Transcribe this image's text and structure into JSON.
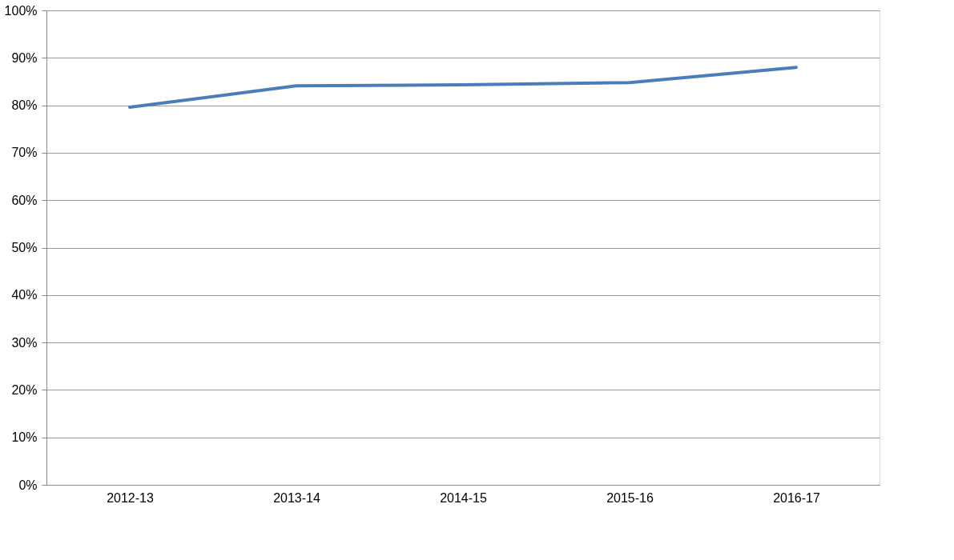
{
  "chart_data": {
    "type": "line",
    "categories": [
      "2012-13",
      "2013-14",
      "2014-15",
      "2015-16",
      "2016-17"
    ],
    "series": [
      {
        "color": "#4a7ebb",
        "values": [
          79.6,
          84.1,
          84.3,
          84.8,
          88.0
        ]
      }
    ],
    "ylim": [
      0,
      100
    ],
    "yticks": [
      {
        "value": 0,
        "label": "0%"
      },
      {
        "value": 10,
        "label": "10%"
      },
      {
        "value": 20,
        "label": "20%"
      },
      {
        "value": 30,
        "label": "30%"
      },
      {
        "value": 40,
        "label": "40%"
      },
      {
        "value": 50,
        "label": "50%"
      },
      {
        "value": 60,
        "label": "60%"
      },
      {
        "value": 70,
        "label": "70%"
      },
      {
        "value": 80,
        "label": "80%"
      },
      {
        "value": 90,
        "label": "90%"
      },
      {
        "value": 100,
        "label": "100%"
      }
    ],
    "grid": "y",
    "marker": "none",
    "line_style": "solid"
  }
}
